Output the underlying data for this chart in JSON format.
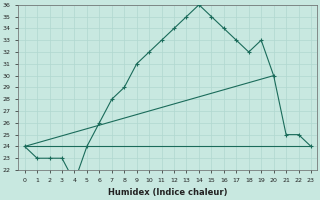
{
  "xlabel": "Humidex (Indice chaleur)",
  "bg_color": "#c8e8e0",
  "grid_color": "#b0d8d0",
  "line_color": "#1a6b5a",
  "x_hours": [
    0,
    1,
    2,
    3,
    4,
    5,
    6,
    7,
    8,
    9,
    10,
    11,
    12,
    13,
    14,
    15,
    16,
    17,
    18,
    19,
    20,
    21,
    22,
    23
  ],
  "humidex": [
    24,
    23,
    23,
    23,
    21,
    24,
    26,
    28,
    29,
    31,
    32,
    33,
    34,
    35,
    36,
    35,
    34,
    33,
    32,
    33,
    30,
    25,
    25,
    24
  ],
  "line2_x": [
    0,
    20
  ],
  "line2_y": [
    24,
    30
  ],
  "line3_x": [
    0,
    23
  ],
  "line3_y": [
    24,
    24
  ],
  "ylim_min": 22,
  "ylim_max": 36,
  "xlim_min": -0.5,
  "xlim_max": 23.5,
  "yticks": [
    22,
    23,
    24,
    25,
    26,
    27,
    28,
    29,
    30,
    31,
    32,
    33,
    34,
    35,
    36
  ],
  "xticks": [
    0,
    1,
    2,
    3,
    4,
    5,
    6,
    7,
    8,
    9,
    10,
    11,
    12,
    13,
    14,
    15,
    16,
    17,
    18,
    19,
    20,
    21,
    22,
    23
  ],
  "xlabel_fontsize": 6,
  "tick_fontsize": 4.5
}
